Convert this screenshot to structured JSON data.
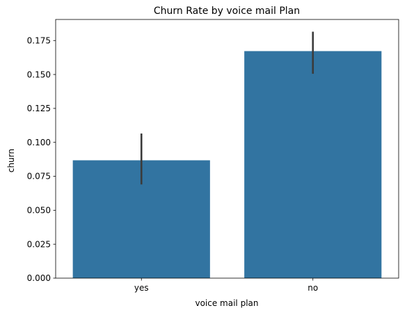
{
  "chart_data": {
    "type": "bar",
    "title": "Churn Rate by voice mail Plan",
    "xlabel": "voice mail plan",
    "ylabel": "churn",
    "categories": [
      "yes",
      "no"
    ],
    "values": [
      0.0868,
      0.1672
    ],
    "error_bars": [
      [
        0.069,
        0.1065
      ],
      [
        0.1505,
        0.1815
      ]
    ],
    "ylim": [
      0,
      0.1905
    ],
    "yticks": [
      0.0,
      0.025,
      0.05,
      0.075,
      0.1,
      0.125,
      0.15,
      0.175
    ],
    "ytick_labels": [
      "0.000",
      "0.025",
      "0.050",
      "0.075",
      "0.100",
      "0.125",
      "0.150",
      "0.175"
    ],
    "grid": false,
    "colors": {
      "bar": "#3274a1",
      "error_bar": "#3b3b3b",
      "axis": "#000000"
    }
  }
}
